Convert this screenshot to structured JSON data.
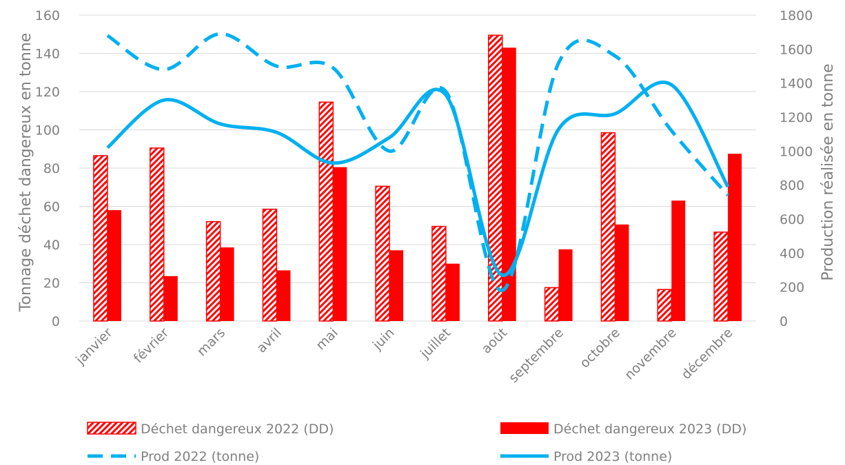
{
  "chart_data": {
    "type": "bar",
    "categories": [
      "janvier",
      "février",
      "mars",
      "avril",
      "mai",
      "juin",
      "juillet",
      "août",
      "septembre",
      "octobre",
      "novembre",
      "décembre"
    ],
    "bar_series": [
      {
        "name": "Déchet dangereux 2022 (DD)",
        "style": "hatched",
        "color": "#ff0000",
        "values": [
          86.5,
          90.5,
          52,
          58.5,
          114.5,
          70.5,
          49.5,
          149.5,
          17.5,
          98.5,
          16.5,
          46.5
        ]
      },
      {
        "name": "Déchet dangereux 2023 (DD)",
        "style": "solid",
        "color": "#ff0000",
        "values": [
          58,
          23.5,
          38.5,
          26.5,
          80.5,
          37,
          30,
          143,
          37.5,
          50.5,
          63,
          87.5
        ]
      }
    ],
    "line_series": [
      {
        "name": "Prod 2022 (tonne)",
        "style": "dashed",
        "color": "#00b0f0",
        "axis": "right",
        "values": [
          1680,
          1480,
          1690,
          1500,
          1490,
          1000,
          1350,
          180,
          1520,
          1560,
          1120,
          740
        ]
      },
      {
        "name": "Prod 2023 (tonne)",
        "style": "solid",
        "color": "#00b0f0",
        "axis": "right",
        "values": [
          1020,
          1300,
          1160,
          1110,
          930,
          1080,
          1330,
          270,
          1130,
          1220,
          1390,
          790
        ]
      }
    ],
    "ylabel": "Tonnage déchet  dangereux en tonne",
    "y2label": "Production réalisée en tonne",
    "ylim": [
      0,
      160
    ],
    "yticks": [
      "0",
      "20",
      "40",
      "60",
      "80",
      "100",
      "120",
      "140",
      "160"
    ],
    "y2lim": [
      0,
      1800
    ],
    "y2ticks": [
      "0",
      "200",
      "400",
      "600",
      "800",
      "1000",
      "1200",
      "1400",
      "1600",
      "1800"
    ],
    "grid": true,
    "legend_position": "bottom"
  }
}
